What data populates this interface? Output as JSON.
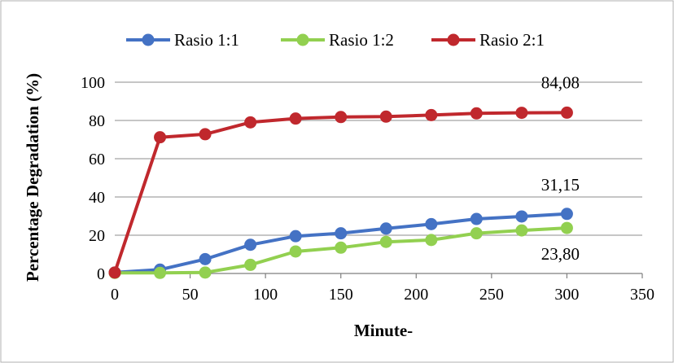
{
  "chart_data": {
    "type": "line",
    "title": "",
    "xlabel": "Minute-",
    "ylabel": "Percentage Degradation (%)",
    "xlim": [
      0,
      350
    ],
    "ylim": [
      0,
      100
    ],
    "x_ticks": [
      0,
      50,
      100,
      150,
      200,
      250,
      300,
      350
    ],
    "y_ticks": [
      0,
      20,
      40,
      60,
      80,
      100
    ],
    "x_tick_labels": [
      "0",
      "50",
      "100",
      "150",
      "200",
      "250",
      "300",
      "350"
    ],
    "y_tick_labels": [
      "0",
      "20",
      "40",
      "60",
      "80",
      "100"
    ],
    "grid": "horizontal",
    "legend_position": "top",
    "x": [
      0,
      30,
      60,
      90,
      120,
      150,
      180,
      210,
      240,
      270,
      300
    ],
    "series": [
      {
        "name": "Rasio 1:1",
        "color": "#4472C4",
        "values": [
          0.5,
          2.0,
          7.5,
          15.0,
          19.5,
          21.0,
          23.5,
          25.8,
          28.5,
          29.8,
          31.15
        ],
        "end_label": "31,15"
      },
      {
        "name": "Rasio 1:2",
        "color": "#92D050",
        "values": [
          0.3,
          0.3,
          0.5,
          4.5,
          11.5,
          13.5,
          16.5,
          17.5,
          21.0,
          22.5,
          23.8
        ],
        "end_label": "23,80"
      },
      {
        "name": "Rasio 2:1",
        "color": "#C0282D",
        "values": [
          0.5,
          71.2,
          72.8,
          79.0,
          81.0,
          81.8,
          82.0,
          82.8,
          83.7,
          84.0,
          84.08
        ],
        "end_label": "84,08"
      }
    ]
  }
}
